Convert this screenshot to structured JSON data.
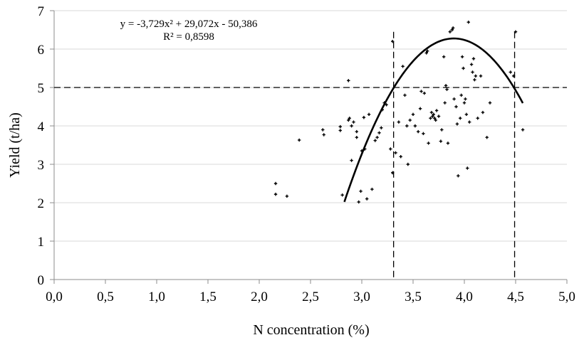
{
  "chart_data": {
    "type": "scatter",
    "xlabel": "N concentration (%)",
    "ylabel": "Yield (t/ha)",
    "xlim": [
      0,
      5
    ],
    "ylim": [
      0,
      7
    ],
    "x_ticks": [
      "0,0",
      "0,5",
      "1,0",
      "1,5",
      "2,0",
      "2,5",
      "3,0",
      "3,5",
      "4,0",
      "4,5",
      "5,0"
    ],
    "y_ticks": [
      "0",
      "1",
      "2",
      "3",
      "4",
      "5",
      "6",
      "7"
    ],
    "grid": "horizontal",
    "annotation": {
      "equation": "y = -3,729x² + 29,072x - 50,386",
      "r_squared": "R² = 0,8598"
    },
    "trendline": {
      "type": "polynomial",
      "coefficients": [
        -3.729,
        29.072,
        -50.386
      ],
      "x_range": [
        2.83,
        4.57
      ]
    },
    "reference_lines": {
      "horizontal_y": 5.0,
      "vertical_x": [
        3.31,
        4.49
      ]
    },
    "points": [
      [
        2.16,
        2.5
      ],
      [
        2.16,
        2.22
      ],
      [
        2.27,
        2.17
      ],
      [
        2.39,
        3.63
      ],
      [
        2.62,
        3.9
      ],
      [
        2.63,
        3.77
      ],
      [
        2.79,
        3.88
      ],
      [
        2.79,
        3.98
      ],
      [
        2.81,
        2.2
      ],
      [
        2.87,
        5.18
      ],
      [
        2.87,
        4.15
      ],
      [
        2.88,
        4.2
      ],
      [
        2.9,
        4.0
      ],
      [
        2.9,
        3.1
      ],
      [
        2.92,
        4.1
      ],
      [
        2.95,
        3.85
      ],
      [
        2.95,
        3.7
      ],
      [
        2.97,
        2.02
      ],
      [
        2.99,
        2.3
      ],
      [
        3.0,
        3.35
      ],
      [
        3.02,
        4.22
      ],
      [
        3.03,
        3.4
      ],
      [
        3.05,
        2.1
      ],
      [
        3.07,
        4.3
      ],
      [
        3.1,
        2.35
      ],
      [
        3.13,
        3.62
      ],
      [
        3.15,
        3.7
      ],
      [
        3.17,
        3.82
      ],
      [
        3.19,
        3.95
      ],
      [
        3.2,
        4.42
      ],
      [
        3.22,
        4.6
      ],
      [
        3.24,
        4.55
      ],
      [
        3.28,
        3.4
      ],
      [
        3.3,
        6.2
      ],
      [
        3.3,
        2.78
      ],
      [
        3.33,
        3.3
      ],
      [
        3.36,
        4.1
      ],
      [
        3.38,
        3.2
      ],
      [
        3.4,
        5.55
      ],
      [
        3.42,
        4.8
      ],
      [
        3.44,
        4.0
      ],
      [
        3.45,
        3.0
      ],
      [
        3.47,
        4.15
      ],
      [
        3.5,
        4.3
      ],
      [
        3.52,
        4.0
      ],
      [
        3.55,
        3.85
      ],
      [
        3.57,
        4.45
      ],
      [
        3.58,
        4.9
      ],
      [
        3.6,
        3.8
      ],
      [
        3.61,
        4.85
      ],
      [
        3.63,
        5.9
      ],
      [
        3.64,
        5.95
      ],
      [
        3.65,
        3.55
      ],
      [
        3.67,
        4.2
      ],
      [
        3.68,
        4.35
      ],
      [
        3.69,
        4.25
      ],
      [
        3.7,
        4.3
      ],
      [
        3.71,
        4.2
      ],
      [
        3.72,
        4.15
      ],
      [
        3.73,
        4.4
      ],
      [
        3.75,
        4.25
      ],
      [
        3.77,
        3.6
      ],
      [
        3.78,
        3.9
      ],
      [
        3.8,
        5.8
      ],
      [
        3.81,
        4.6
      ],
      [
        3.82,
        5.05
      ],
      [
        3.83,
        4.95
      ],
      [
        3.84,
        3.55
      ],
      [
        3.86,
        6.45
      ],
      [
        3.88,
        6.5
      ],
      [
        3.89,
        6.55
      ],
      [
        3.9,
        4.7
      ],
      [
        3.92,
        4.5
      ],
      [
        3.93,
        4.05
      ],
      [
        3.94,
        2.7
      ],
      [
        3.96,
        4.2
      ],
      [
        3.97,
        4.8
      ],
      [
        3.98,
        5.8
      ],
      [
        3.99,
        5.5
      ],
      [
        4.0,
        4.6
      ],
      [
        4.01,
        4.7
      ],
      [
        4.02,
        4.3
      ],
      [
        4.03,
        2.9
      ],
      [
        4.04,
        6.7
      ],
      [
        4.05,
        4.1
      ],
      [
        4.07,
        5.6
      ],
      [
        4.08,
        5.4
      ],
      [
        4.09,
        5.75
      ],
      [
        4.1,
        5.2
      ],
      [
        4.11,
        5.3
      ],
      [
        4.13,
        4.2
      ],
      [
        4.16,
        5.3
      ],
      [
        4.18,
        4.35
      ],
      [
        4.22,
        3.7
      ],
      [
        4.25,
        4.6
      ],
      [
        4.45,
        5.4
      ],
      [
        4.48,
        5.3
      ],
      [
        4.5,
        6.45
      ],
      [
        4.57,
        3.9
      ]
    ]
  }
}
